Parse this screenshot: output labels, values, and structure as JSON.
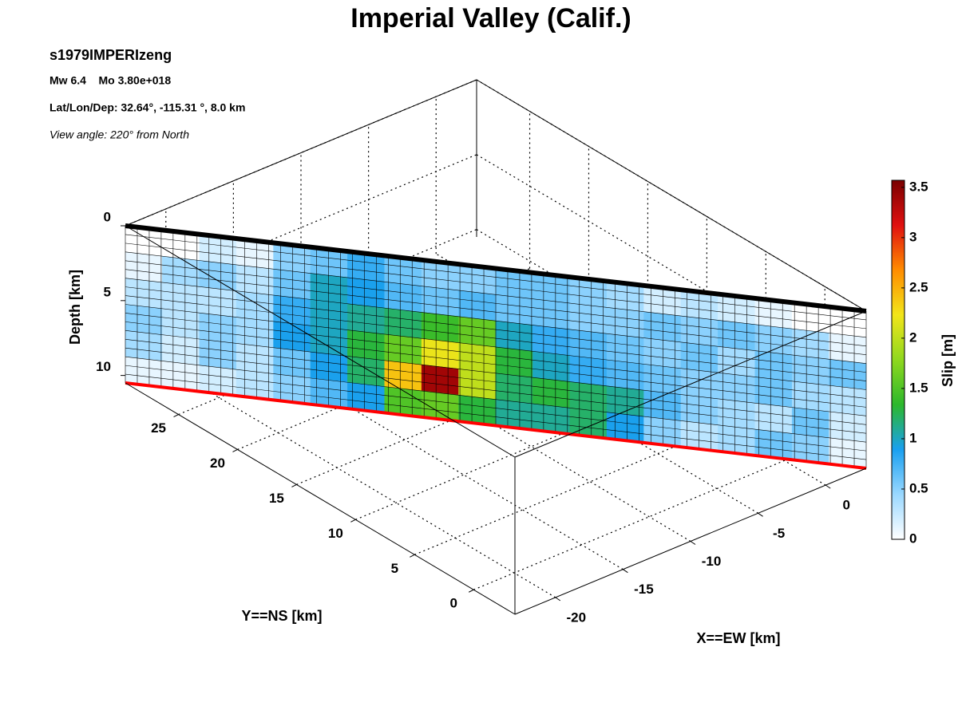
{
  "chart_data": {
    "type": "fault-slip-3d",
    "title": "Imperial Valley (Calif.)",
    "subtitle": "s1979IMPERIzeng",
    "annotations": [
      "Mw 6.4    Mo 3.80e+018",
      "Lat/Lon/Dep: 32.64°, -115.31 °, 8.0 km",
      "View angle: 220° from North"
    ],
    "xlabel": "X==EW [km]",
    "ylabel": "Y==NS [km]",
    "zlabel": "Depth [km]",
    "colorbar_label": "Slip [m]",
    "xlim": [
      -23,
      3
    ],
    "xticks": [
      -20,
      -15,
      -10,
      -5,
      0
    ],
    "ylim": [
      -3.5,
      29.5
    ],
    "yticks": [
      0,
      5,
      10,
      15,
      20,
      25
    ],
    "depthlim": [
      0,
      10.5
    ],
    "depthticks": [
      0,
      5,
      10
    ],
    "clim": [
      0,
      3.57
    ],
    "cticks": [
      0,
      0.5,
      1,
      1.5,
      2,
      2.5,
      3,
      3.5
    ],
    "colormap": [
      "#ffffff",
      "#9ad8ff",
      "#1aa0f0",
      "#2cb82c",
      "#8fd81e",
      "#f2e51a",
      "#ff8c00",
      "#e01010",
      "#7a0000"
    ],
    "grid": true,
    "fault_top_color": "#000000",
    "fault_bottom_color": "#ff0000",
    "slip": [
      [
        0,
        0,
        0.2,
        0.1,
        0.5,
        0.6,
        0.8,
        0.6,
        0.5,
        0.5,
        0.6,
        0.6,
        0.5,
        0.4,
        0.2,
        0.3,
        0.2,
        0.1,
        0,
        0
      ],
      [
        0.1,
        0.4,
        0.5,
        0.3,
        0.6,
        1.0,
        0.9,
        0.7,
        0.6,
        0.7,
        0.6,
        0.6,
        0.5,
        0.5,
        0.6,
        0.5,
        0.6,
        0.5,
        0.4,
        0.1
      ],
      [
        0.3,
        0.3,
        0.3,
        0.4,
        0.8,
        1.0,
        1.1,
        1.2,
        1.4,
        1.6,
        1.0,
        0.8,
        0.7,
        0.6,
        0.5,
        0.6,
        0.4,
        0.6,
        0.5,
        0.6
      ],
      [
        0.5,
        0.3,
        0.5,
        0.4,
        0.9,
        1.0,
        1.3,
        1.6,
        2.2,
        2.0,
        1.3,
        1.0,
        0.8,
        0.7,
        0.6,
        0.5,
        0.5,
        0.6,
        0.4,
        0.3
      ],
      [
        0.4,
        0.2,
        0.5,
        0.3,
        0.6,
        0.9,
        1.2,
        2.4,
        3.4,
        2.0,
        1.2,
        1.3,
        1.2,
        1.1,
        0.7,
        0.5,
        0.4,
        0.3,
        0.6,
        0.2
      ],
      [
        0.1,
        0.1,
        0.2,
        0.3,
        0.5,
        0.7,
        0.9,
        1.5,
        1.6,
        1.3,
        1.1,
        1.1,
        1.2,
        0.9,
        0.5,
        0.3,
        0.4,
        0.6,
        0.5,
        0.1
      ]
    ]
  }
}
